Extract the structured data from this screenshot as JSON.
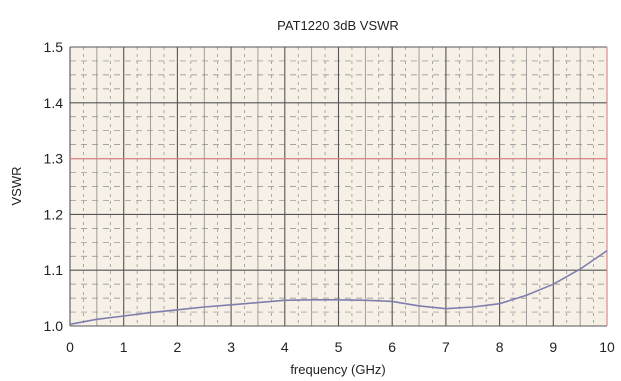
{
  "chart_data": {
    "type": "line",
    "title": "PAT1220 3dB VSWR",
    "xlabel": "frequency (GHz)",
    "ylabel": "VSWR",
    "xlim": [
      0,
      10
    ],
    "ylim": [
      1.0,
      1.5
    ],
    "x_ticks": [
      "0",
      "1",
      "2",
      "3",
      "4",
      "5",
      "6",
      "7",
      "8",
      "9",
      "10"
    ],
    "y_ticks": [
      "1.0",
      "1.1",
      "1.2",
      "1.3",
      "1.4",
      "1.5"
    ],
    "grid": true,
    "legend": "none",
    "series": [
      {
        "x": [
          0,
          0.5,
          1,
          1.5,
          2,
          2.5,
          3,
          3.5,
          4,
          4.5,
          5,
          5.5,
          6,
          6.5,
          7,
          7.5,
          8,
          8.5,
          9,
          9.5,
          10
        ],
        "values": [
          1.003,
          1.012,
          1.018,
          1.024,
          1.029,
          1.034,
          1.038,
          1.042,
          1.046,
          1.047,
          1.047,
          1.046,
          1.044,
          1.036,
          1.031,
          1.034,
          1.04,
          1.055,
          1.075,
          1.102,
          1.135
        ]
      }
    ],
    "colors": {
      "plot_background": "#f7f0e6",
      "grid_major": "#555555",
      "grid_minor": "#8a8a8a",
      "highlight_line": "#e08888",
      "series_line": "#7f7fae"
    }
  }
}
